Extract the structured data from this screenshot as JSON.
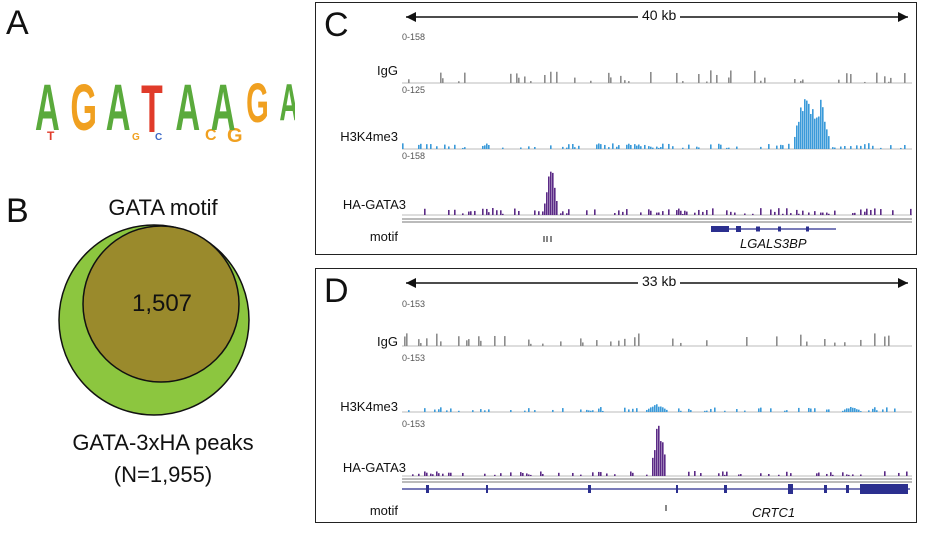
{
  "panels": {
    "A": {
      "letter": "A",
      "motif": "AGATAAGA"
    },
    "B": {
      "letter": "B",
      "outer_label": "GATA-3xHA peaks",
      "outer_count": "(N=1,955)",
      "inner_label": "GATA motif",
      "overlap": "1,507",
      "colors": {
        "outer": "#8cc63f",
        "inner": "#9a8a2c"
      }
    },
    "C": {
      "letter": "C",
      "span": "40 kb",
      "gene": "LGALS3BP",
      "tracks": [
        {
          "name": "IgG",
          "scale": "0-158",
          "color": "#8c8c8c"
        },
        {
          "name": "H3K4me3",
          "scale": "0-125",
          "color": "#3a9ad9"
        },
        {
          "name": "HA-GATA3",
          "scale": "0-158",
          "color": "#5b2a86"
        }
      ],
      "motif_label": "motif"
    },
    "D": {
      "letter": "D",
      "span": "33 kb",
      "gene": "CRTC1",
      "tracks": [
        {
          "name": "IgG",
          "scale": "0-153",
          "color": "#8c8c8c"
        },
        {
          "name": "H3K4me3",
          "scale": "0-153",
          "color": "#3a9ad9"
        },
        {
          "name": "HA-GATA3",
          "scale": "0-153",
          "color": "#5b2a86"
        }
      ],
      "motif_label": "motif"
    }
  }
}
